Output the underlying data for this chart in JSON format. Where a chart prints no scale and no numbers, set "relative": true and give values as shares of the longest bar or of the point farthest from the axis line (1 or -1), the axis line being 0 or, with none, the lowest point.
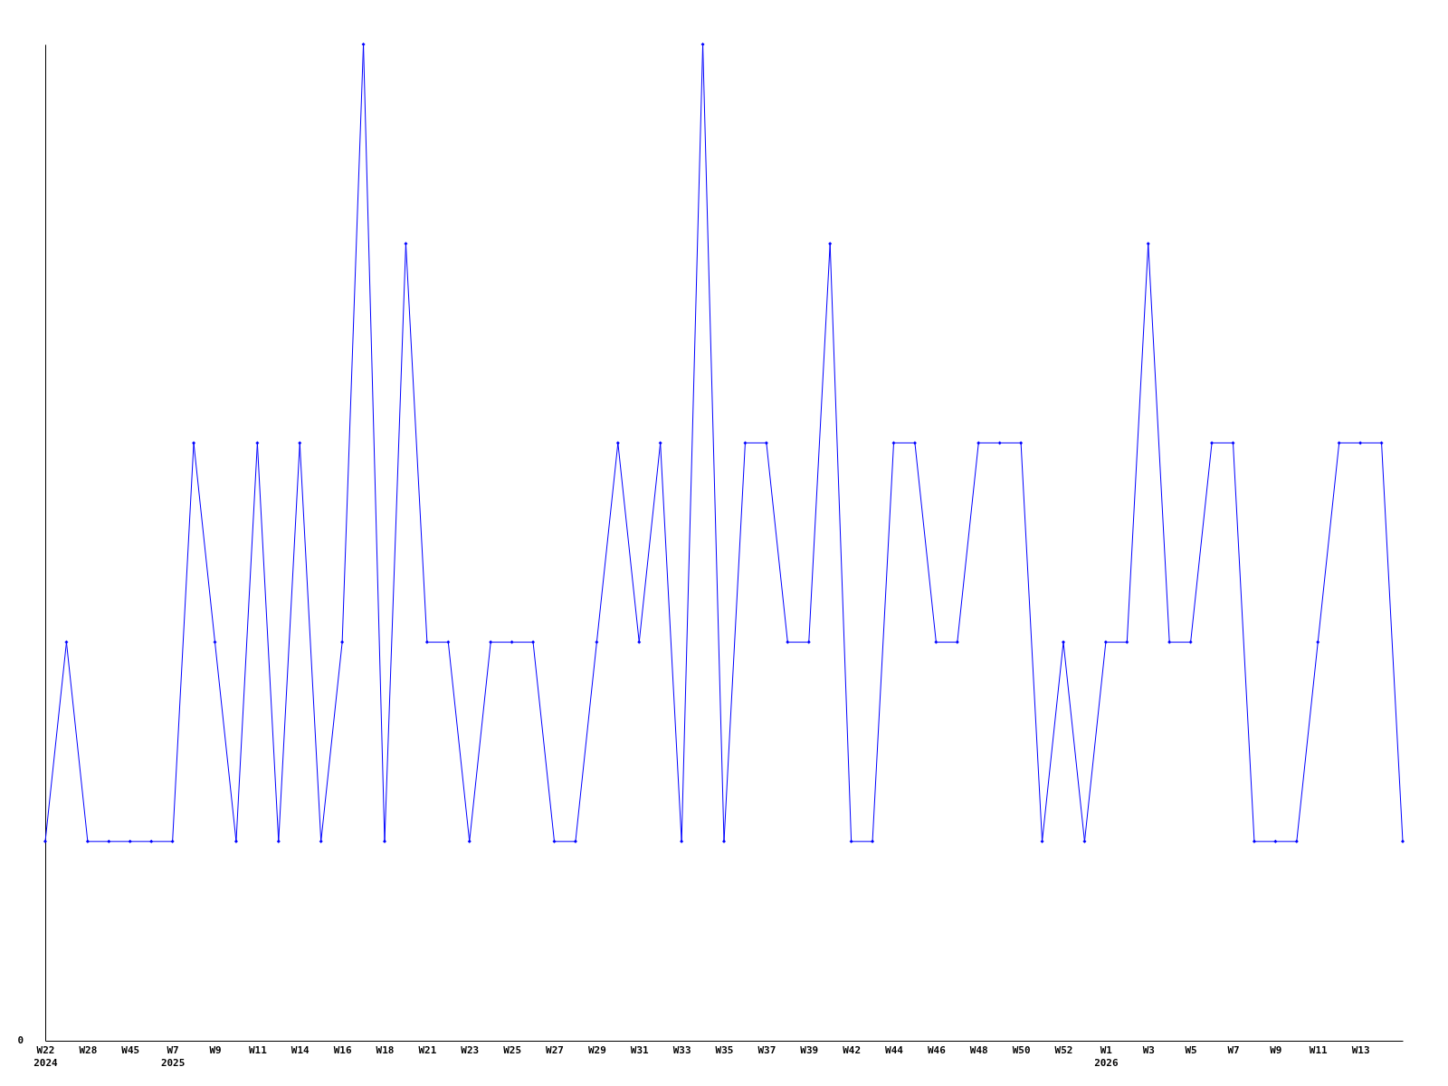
{
  "chart_data": {
    "type": "line",
    "relative": true,
    "color": "#0000ff",
    "marker": "diamond",
    "line_style": "solid",
    "annotations": [
      "0"
    ],
    "categories": [
      "W22\n2024",
      null,
      "W28",
      null,
      "W45",
      null,
      "W7\n2025",
      null,
      "W9",
      null,
      "W11",
      null,
      "W14",
      null,
      "W16",
      null,
      "W18",
      null,
      "W21",
      null,
      "W23",
      null,
      "W25",
      null,
      "W27",
      null,
      "W29",
      null,
      "W31",
      null,
      "W33",
      null,
      "W35",
      null,
      "W37",
      null,
      "W39",
      null,
      "W42",
      null,
      "W44",
      null,
      "W46",
      null,
      "W48",
      null,
      "W50",
      null,
      "W52",
      null,
      "W1\n2026",
      null,
      "W3",
      null,
      "W5",
      null,
      "W7",
      null,
      "W9",
      null,
      "W11",
      null,
      "W13",
      null,
      null
    ],
    "values": [
      0.2,
      0.4,
      0.2,
      0.2,
      0.2,
      0.2,
      0.2,
      0.6,
      0.4,
      0.2,
      0.6,
      0.2,
      0.6,
      0.2,
      0.4,
      1,
      0.2,
      0.8,
      0.4,
      0.4,
      0.2,
      0.4,
      0.4,
      0.4,
      0.2,
      0.2,
      0.4,
      0.6,
      0.4,
      0.6,
      0.2,
      1,
      0.2,
      0.6,
      0.6,
      0.4,
      0.4,
      0.8,
      0.2,
      0.2,
      0.6,
      0.6,
      0.4,
      0.4,
      0.6,
      0.6,
      0.6,
      0.2,
      0.4,
      0.2,
      0.4,
      0.4,
      0.8,
      0.4,
      0.4,
      0.6,
      0.6,
      0.2,
      0.2,
      0.2,
      0.4,
      0.6,
      0.6,
      0.6,
      0.2
    ]
  }
}
